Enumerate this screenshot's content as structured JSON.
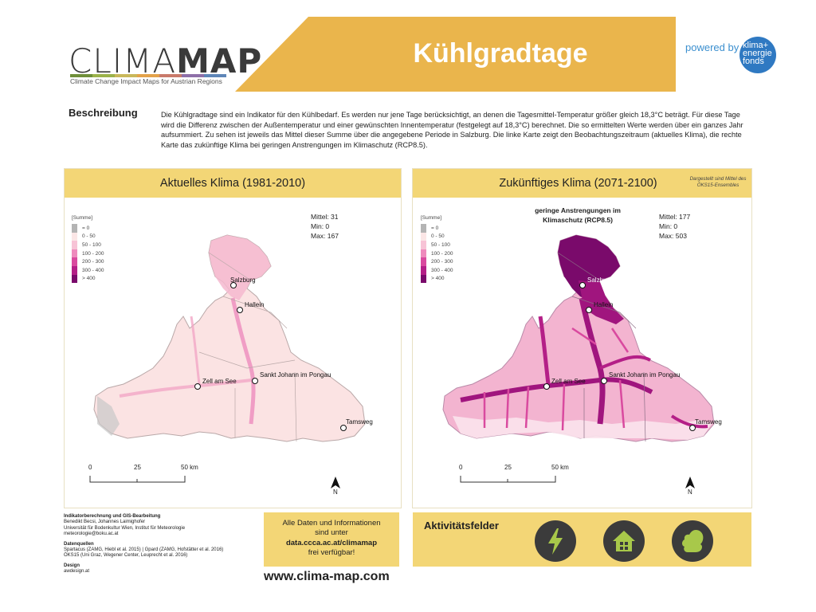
{
  "header": {
    "logo_light": "CLIMA",
    "logo_bold": "MAP",
    "logo_subtitle": "Climate Change Impact Maps for Austrian Regions",
    "title": "Kühlgradtage",
    "powered_by": "powered by",
    "partner_logo": "klima+ energie fonds",
    "colors": {
      "banner": "#eab54c",
      "title_text": "#ffffff",
      "logo_text": "#3a3a3a"
    }
  },
  "description": {
    "heading": "Beschreibung",
    "text": "Die Kühlgradtage sind ein Indikator für den Kühlbedarf. Es werden nur jene Tage berücksichtigt, an denen die Tagesmittel-Temperatur größer gleich 18,3°C beträgt. Für diese Tage wird die Differenz zwischen der Außentemperatur und einer gewünschten Innentemperatur (festgelegt auf 18,3°C) berechnet. Die so ermittelten Werte werden über ein ganzes Jahr aufsummiert. Zu sehen ist jeweils das Mittel dieser Summe über die angegebene Periode in Salzburg. Die linke Karte zeigt den Beobachtungszeitraum (aktuelles Klima), die rechte Karte das zukünftige Klima bei geringen Anstrengungen im Klimaschutz (RCP8.5)."
  },
  "legend": {
    "title": "[Summe]",
    "classes": [
      {
        "label": "= 0",
        "color": "#b4b4b4"
      },
      {
        "label": "0 - 50",
        "color": "#fbe6e6"
      },
      {
        "label": "50 - 100",
        "color": "#f7c3d6"
      },
      {
        "label": "100 - 200",
        "color": "#ee8bbd"
      },
      {
        "label": "200 - 300",
        "color": "#d94a9f"
      },
      {
        "label": "300 - 400",
        "color": "#b41f87"
      },
      {
        "label": "> 400",
        "color": "#7a0a6b"
      }
    ]
  },
  "maps": {
    "current": {
      "title": "Aktuelles Klima (1981-2010)",
      "stats": {
        "mean": "Mittel: 31",
        "min": "Min: 0",
        "max": "Max: 167"
      }
    },
    "future": {
      "title": "Zukünftiges Klima (2071-2100)",
      "footnote": "Dargestellt sind Mittel des ÖKS15-Ensembles",
      "scenario": "geringe Anstrengungen im Klimaschutz (RCP8.5)",
      "stats": {
        "mean": "Mittel: 177",
        "min": "Min: 0",
        "max": "Max: 503"
      }
    },
    "cities": {
      "salzburg": "Salzburg",
      "hallein": "Hallein",
      "zell": "Zell am See",
      "johann": "Sankt Johann im Pongau",
      "tamsweg": "Tamsweg"
    },
    "scale": {
      "t0": "0",
      "t1": "25",
      "t2": "50 km"
    },
    "north": "N"
  },
  "credits": {
    "gis_heading": "Indikatorberechnung und GIS-Bearbeitung",
    "gis_lines": [
      "Benedikt Becsi, Johannes Laimighofer",
      "Universität für Bodenkultur Wien, Institut für Meteorologie",
      "meteorologie@boku.ac.at"
    ],
    "sources_heading": "Datenquellen",
    "sources_lines": [
      "Spartacus (ZAMG, Hiebl et al. 2015) | Gpard (ZAMG, Hofstätter et al. 2016)",
      "ÖKS15 (Uni Graz, Wegener Center, Leuprecht et al. 2016)"
    ],
    "design_heading": "Design",
    "design_line": "awdesign.at"
  },
  "info": {
    "line1": "Alle Daten und Informationen",
    "line2": "sind unter",
    "link": "data.ccca.ac.at/climamap",
    "line3": "frei verfügbar!"
  },
  "footer_url": "www.clima-map.com",
  "activities": {
    "title": "Aktivitätsfelder",
    "icons": [
      "lightning-icon",
      "house-icon",
      "squirrel-icon"
    ]
  }
}
